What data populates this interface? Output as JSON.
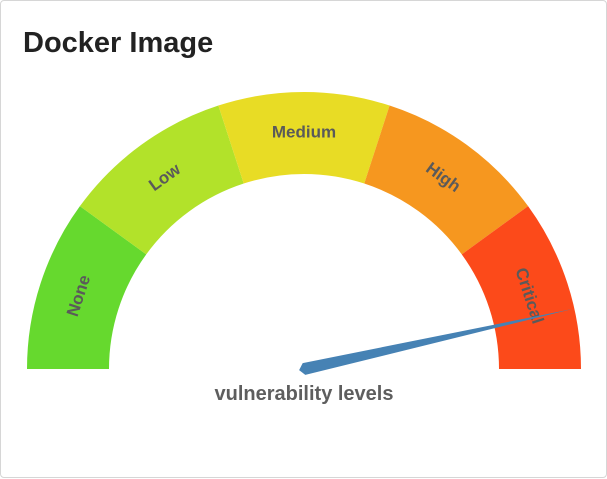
{
  "card": {
    "title": "Docker Image"
  },
  "gauge": {
    "caption": "vulnerability levels",
    "value_fraction": 0.93,
    "needle_color": "#4682b4",
    "segments": [
      {
        "label": "None",
        "color": "#66d92e"
      },
      {
        "label": "Low",
        "color": "#b2e22a"
      },
      {
        "label": "Medium",
        "color": "#e8dc25"
      },
      {
        "label": "High",
        "color": "#f6971f"
      },
      {
        "label": "Critical",
        "color": "#fc4a1a"
      }
    ]
  }
}
